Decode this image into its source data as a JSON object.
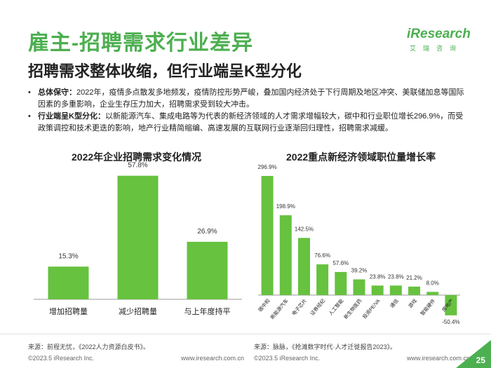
{
  "header": {
    "title": "雇主-招聘需求行业差异",
    "subtitle": "招聘需求整体收缩，但行业端呈K型分化",
    "logo_main": "iResearch",
    "logo_sub": "艾瑞咨询"
  },
  "bullets": [
    {
      "bold": "总体保守：",
      "text": "2022年，疫情多点散发多地频发，疫情防控形势严峻，叠加国内经济处于下行周期及地区冲突、美联储加息等国际因素的多重影响，企业生存压力加大，招聘需求受到较大冲击。"
    },
    {
      "bold": "行业端呈K型分化：",
      "text": "以新能源汽车、集成电路等为代表的新经济领域的人才需求增幅较大，碳中和行业职位增长296.9%，而受政策调控和技术更迭的影响，地产行业精简缩编、高速发展的互联网行业逐渐回归理性，招聘需求减缓。"
    }
  ],
  "colors": {
    "accent": "#4caf50",
    "bar": "#66c23f"
  },
  "chart_data": [
    {
      "type": "bar",
      "title": "2022年企业招聘需求变化情况",
      "categories": [
        "增加招聘量",
        "减少招聘量",
        "与上年度持平"
      ],
      "values": [
        15.3,
        57.8,
        26.9
      ],
      "value_labels": [
        "15.3%",
        "57.8%",
        "26.9%"
      ],
      "ylim": [
        0,
        60
      ],
      "source": "来源：前程无忧，《2022人力资源白皮书》。"
    },
    {
      "type": "bar",
      "title": "2022重点新经济领域职位量增长率",
      "categories": [
        "碳中和",
        "新能源汽车",
        "电子芯片",
        "证券经纪",
        "人工智能",
        "新生物医药",
        "投资PE/VA",
        "通信",
        "游戏",
        "智能硬件",
        "房地产"
      ],
      "values": [
        296.9,
        198.9,
        142.5,
        76.6,
        57.6,
        39.2,
        23.8,
        23.8,
        21.2,
        8.0,
        -50.4
      ],
      "value_labels": [
        "296.9%",
        "198.9%",
        "142.5%",
        "76.6%",
        "57.6%",
        "39.2%",
        "23.8%",
        "23.8%",
        "21.2%",
        "8.0%",
        "-50.4%"
      ],
      "ylim": [
        -60,
        300
      ],
      "source": "来源：脉脉，《抢滩数字时代·人才迁徙报告2023》。"
    }
  ],
  "footer": {
    "left_copyright": "©2023.5 iResearch Inc.",
    "left_url": "www.iresearch.com.cn",
    "right_copyright": "©2023.5 iResearch Inc.",
    "right_url": "www.iresearch.com.cn",
    "page": "25"
  }
}
